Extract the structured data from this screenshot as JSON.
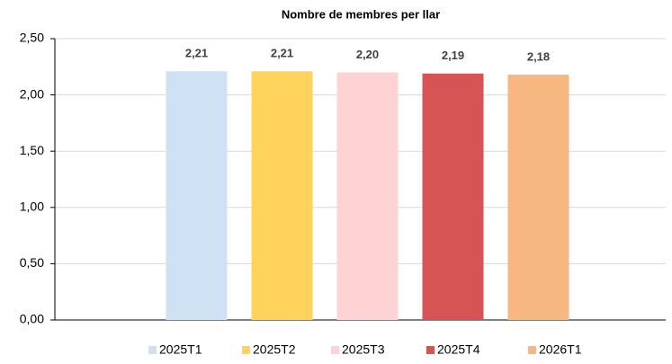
{
  "chart_data": {
    "type": "bar",
    "title": "Nombre de membres per llar",
    "categories": [
      null
    ],
    "series": [
      {
        "name": "2025T1",
        "color": "#cfe2f3",
        "values": [
          2.21
        ],
        "value_labels": [
          "2,21"
        ]
      },
      {
        "name": "2025T2",
        "color": "#ffd35c",
        "values": [
          2.21
        ],
        "value_labels": [
          "2,21"
        ]
      },
      {
        "name": "2025T3",
        "color": "#ffd3d3",
        "values": [
          2.2
        ],
        "value_labels": [
          "2,20"
        ]
      },
      {
        "name": "2025T4",
        "color": "#d65454",
        "values": [
          2.19
        ],
        "value_labels": [
          "2,19"
        ]
      },
      {
        "name": "2026T1",
        "color": "#f7b780",
        "values": [
          2.18
        ],
        "value_labels": [
          "2,18"
        ]
      }
    ],
    "ylim": [
      0,
      2.5
    ],
    "yticks": [
      {
        "value": 0,
        "label": "0,00"
      },
      {
        "value": 0.5,
        "label": "0,50"
      },
      {
        "value": 1,
        "label": "1,00"
      },
      {
        "value": 1.5,
        "label": "1,50"
      },
      {
        "value": 2,
        "label": "2,00"
      },
      {
        "value": 2.5,
        "label": "2,50"
      }
    ],
    "grid": true,
    "legend": "bottom"
  }
}
